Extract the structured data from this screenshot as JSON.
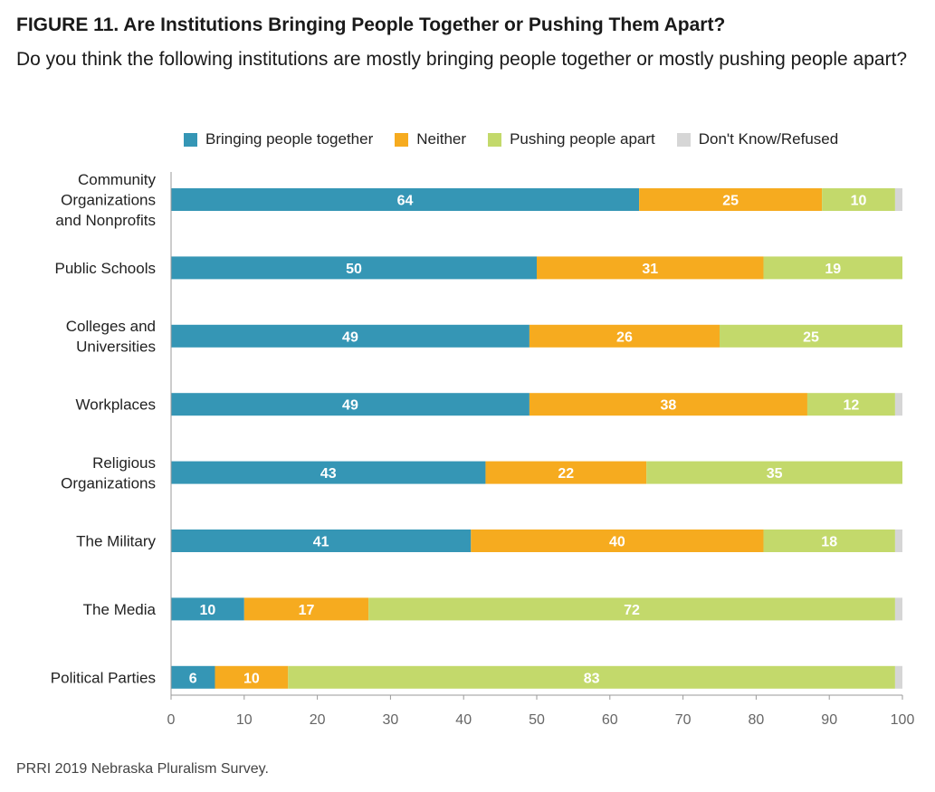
{
  "title": "FIGURE 11. Are Institutions Bringing People Together or Pushing Them Apart?",
  "subtitle": "Do you think the following institutions are mostly bringing people together or mostly pushing people apart?",
  "source": "PRRI 2019 Nebraska Pluralism Survey.",
  "chart_data": {
    "type": "bar",
    "orientation": "horizontal",
    "stacked": true,
    "categories": [
      [
        "Community",
        "Organizations",
        "and Nonprofits"
      ],
      [
        "Public Schools"
      ],
      [
        "Colleges and",
        "Universities"
      ],
      [
        "Workplaces"
      ],
      [
        "Religious",
        "Organizations"
      ],
      [
        "The Military"
      ],
      [
        "The Media"
      ],
      [
        "Political Parties"
      ]
    ],
    "series": [
      {
        "name": "Bringing people together",
        "color": "#3596b5",
        "values": [
          64,
          50,
          49,
          49,
          43,
          41,
          10,
          6
        ]
      },
      {
        "name": "Neither",
        "color": "#f6ab1f",
        "values": [
          25,
          31,
          26,
          38,
          22,
          40,
          17,
          10
        ]
      },
      {
        "name": "Pushing people apart",
        "color": "#c3d96b",
        "values": [
          10,
          19,
          25,
          12,
          35,
          18,
          72,
          83
        ]
      },
      {
        "name": "Don't Know/Refused",
        "color": "#d6d6d6",
        "values": [
          1,
          0,
          1,
          1,
          0,
          1,
          1,
          1
        ]
      }
    ],
    "show_labels": [
      true,
      true,
      true,
      false
    ],
    "xlim": [
      0,
      100
    ],
    "xticks": [
      0,
      10,
      20,
      30,
      40,
      50,
      60,
      70,
      80,
      90,
      100
    ],
    "grid": false,
    "legend_position": "top"
  }
}
